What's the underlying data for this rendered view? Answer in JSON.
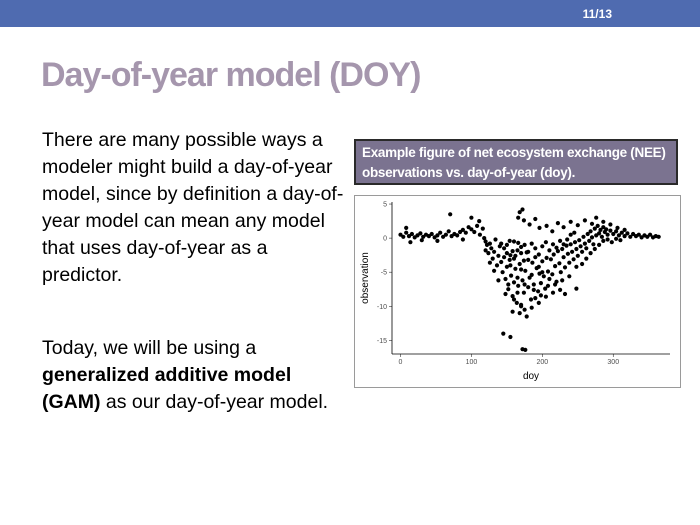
{
  "header": {
    "page_number": "11/13",
    "bar_color": "#4f6bb0"
  },
  "slide": {
    "title": "Day-of-year model (DOY)",
    "title_color": "#a596ad",
    "para1": "There are many possible ways a modeler might build a day-of-year model, since by definition a day-of-year model can mean any model that uses day-of-year as a predictor.",
    "para2_start": "Today, we will be using a ",
    "para2_bold": "generalized additive model (GAM)",
    "para2_end": " as our day-of-year model."
  },
  "figure": {
    "caption": "Example figure of net ecosystem exchange (NEE) observations vs. day-of-year (doy).",
    "caption_bg": "#7b7390"
  },
  "chart_data": {
    "type": "scatter",
    "xlabel": "doy",
    "ylabel": "observation",
    "xlim": [
      -12,
      380
    ],
    "ylim": [
      -17,
      5.3
    ],
    "xticks": [
      0,
      100,
      200,
      300
    ],
    "yticks": [
      5,
      0,
      -5,
      -10,
      -15
    ],
    "grid": false,
    "point_color": "#000000",
    "points": [
      [
        0,
        0.5
      ],
      [
        4,
        0.2
      ],
      [
        8,
        0.8
      ],
      [
        12,
        0.3
      ],
      [
        16,
        0.6
      ],
      [
        20,
        0.1
      ],
      [
        24,
        0.4
      ],
      [
        28,
        0.7
      ],
      [
        32,
        0.2
      ],
      [
        36,
        0.5
      ],
      [
        40,
        0.3
      ],
      [
        44,
        0.6
      ],
      [
        48,
        0.1
      ],
      [
        52,
        0.4
      ],
      [
        56,
        0.8
      ],
      [
        60,
        0.2
      ],
      [
        64,
        0.5
      ],
      [
        68,
        1.0
      ],
      [
        72,
        0.3
      ],
      [
        76,
        0.6
      ],
      [
        80,
        0.4
      ],
      [
        84,
        0.9
      ],
      [
        88,
        1.2
      ],
      [
        92,
        0.8
      ],
      [
        96,
        1.6
      ],
      [
        100,
        1.3
      ],
      [
        104,
        0.9
      ],
      [
        108,
        1.8
      ],
      [
        112,
        0.5
      ],
      [
        116,
        1.4
      ],
      [
        70,
        3.5
      ],
      [
        100,
        3.0
      ],
      [
        111,
        2.5
      ],
      [
        8,
        1.5
      ],
      [
        14,
        -0.6
      ],
      [
        30,
        -0.3
      ],
      [
        52,
        -0.4
      ],
      [
        88,
        -0.2
      ],
      [
        118,
        0.0
      ],
      [
        120,
        -0.5
      ],
      [
        122,
        -1.0
      ],
      [
        124,
        -2.2
      ],
      [
        126,
        -0.8
      ],
      [
        128,
        -1.5
      ],
      [
        130,
        -3.0
      ],
      [
        132,
        -2.0
      ],
      [
        134,
        -0.2
      ],
      [
        136,
        -4.0
      ],
      [
        138,
        -2.6
      ],
      [
        140,
        -1.2
      ],
      [
        142,
        -3.5
      ],
      [
        144,
        -5.0
      ],
      [
        146,
        -2.8
      ],
      [
        148,
        -6.0
      ],
      [
        150,
        -4.2
      ],
      [
        152,
        -7.5
      ],
      [
        154,
        -3.2
      ],
      [
        156,
        -5.5
      ],
      [
        158,
        -8.5
      ],
      [
        160,
        -6.5
      ],
      [
        162,
        -4.5
      ],
      [
        164,
        -9.5
      ],
      [
        166,
        -7.0
      ],
      [
        168,
        -3.8
      ],
      [
        170,
        -10.0
      ],
      [
        172,
        -6.2
      ],
      [
        174,
        -8.0
      ],
      [
        176,
        -4.8
      ],
      [
        178,
        -11.5
      ],
      [
        180,
        -7.2
      ],
      [
        182,
        -5.8
      ],
      [
        184,
        -9.0
      ],
      [
        186,
        -3.6
      ],
      [
        188,
        -6.8
      ],
      [
        190,
        -8.8
      ],
      [
        192,
        -4.4
      ],
      [
        194,
        -7.8
      ],
      [
        196,
        -5.2
      ],
      [
        198,
        -6.6
      ],
      [
        200,
        -3.4
      ],
      [
        202,
        -5.6
      ],
      [
        204,
        -7.4
      ],
      [
        206,
        -2.9
      ],
      [
        208,
        -4.9
      ],
      [
        210,
        -6.0
      ],
      [
        212,
        -3.1
      ],
      [
        214,
        -5.3
      ],
      [
        216,
        -2.4
      ],
      [
        218,
        -4.1
      ],
      [
        220,
        -6.4
      ],
      [
        222,
        -1.9
      ],
      [
        224,
        -3.7
      ],
      [
        226,
        -5.0
      ],
      [
        228,
        -1.6
      ],
      [
        230,
        -2.8
      ],
      [
        232,
        -4.3
      ],
      [
        234,
        -1.1
      ],
      [
        236,
        -2.3
      ],
      [
        238,
        -3.6
      ],
      [
        240,
        -0.9
      ],
      [
        242,
        -2.0
      ],
      [
        244,
        -3.1
      ],
      [
        246,
        -0.6
      ],
      [
        248,
        -1.6
      ],
      [
        250,
        -2.6
      ],
      [
        252,
        -0.3
      ],
      [
        254,
        -1.2
      ],
      [
        256,
        -2.0
      ],
      [
        258,
        0.2
      ],
      [
        260,
        -0.8
      ],
      [
        262,
        -1.5
      ],
      [
        264,
        0.6
      ],
      [
        266,
        -0.4
      ],
      [
        268,
        1.0
      ],
      [
        270,
        0.1
      ],
      [
        272,
        -0.9
      ],
      [
        274,
        1.4
      ],
      [
        276,
        0.4
      ],
      [
        278,
        1.8
      ],
      [
        280,
        0.7
      ],
      [
        282,
        1.2
      ],
      [
        284,
        0.2
      ],
      [
        286,
        1.6
      ],
      [
        288,
        0.9
      ],
      [
        290,
        1.3
      ],
      [
        292,
        0.5
      ],
      [
        296,
        1.1
      ],
      [
        300,
        0.6
      ],
      [
        304,
        1.0
      ],
      [
        308,
        0.4
      ],
      [
        312,
        0.8
      ],
      [
        316,
        0.3
      ],
      [
        320,
        0.7
      ],
      [
        324,
        0.2
      ],
      [
        328,
        0.6
      ],
      [
        332,
        0.3
      ],
      [
        336,
        0.5
      ],
      [
        340,
        0.1
      ],
      [
        344,
        0.4
      ],
      [
        348,
        0.2
      ],
      [
        352,
        0.5
      ],
      [
        356,
        0.1
      ],
      [
        360,
        0.3
      ],
      [
        364,
        0.2
      ],
      [
        150,
        -1.0
      ],
      [
        155,
        -2.5
      ],
      [
        160,
        -0.5
      ],
      [
        165,
        -1.8
      ],
      [
        170,
        -2.2
      ],
      [
        175,
        -1.0
      ],
      [
        180,
        -2.0
      ],
      [
        185,
        -0.8
      ],
      [
        190,
        -1.5
      ],
      [
        195,
        -2.4
      ],
      [
        200,
        -1.2
      ],
      [
        205,
        -0.6
      ],
      [
        210,
        -1.8
      ],
      [
        215,
        -0.9
      ],
      [
        220,
        -1.4
      ],
      [
        225,
        -0.4
      ],
      [
        230,
        -0.9
      ],
      [
        235,
        -0.2
      ],
      [
        240,
        0.5
      ],
      [
        245,
        0.8
      ],
      [
        155,
        -4.0
      ],
      [
        160,
        -3.0
      ],
      [
        165,
        -5.8
      ],
      [
        170,
        -4.6
      ],
      [
        175,
        -6.8
      ],
      [
        180,
        -3.2
      ],
      [
        185,
        -5.4
      ],
      [
        190,
        -2.8
      ],
      [
        195,
        -4.2
      ],
      [
        200,
        -5.0
      ],
      [
        142,
        -0.8
      ],
      [
        146,
        -1.5
      ],
      [
        150,
        -2.2
      ],
      [
        154,
        -0.4
      ],
      [
        158,
        -1.9
      ],
      [
        162,
        -2.6
      ],
      [
        166,
        -0.7
      ],
      [
        170,
        -1.3
      ],
      [
        174,
        -3.3
      ],
      [
        178,
        -2.1
      ],
      [
        160,
        -9.0
      ],
      [
        165,
        -8.0
      ],
      [
        170,
        -9.8
      ],
      [
        175,
        -10.5
      ],
      [
        168,
        -11.0
      ],
      [
        185,
        -10.2
      ],
      [
        195,
        -9.5
      ],
      [
        205,
        -8.6
      ],
      [
        215,
        -8.0
      ],
      [
        225,
        -7.6
      ],
      [
        152,
        -6.8
      ],
      [
        148,
        -8.2
      ],
      [
        158,
        -10.8
      ],
      [
        188,
        -7.6
      ],
      [
        198,
        -8.4
      ],
      [
        208,
        -7.0
      ],
      [
        218,
        -6.8
      ],
      [
        228,
        -6.2
      ],
      [
        238,
        -5.6
      ],
      [
        248,
        -4.2
      ],
      [
        168,
        3.8
      ],
      [
        172,
        4.2
      ],
      [
        166,
        3.0
      ],
      [
        174,
        2.6
      ],
      [
        182,
        2.0
      ],
      [
        190,
        2.8
      ],
      [
        196,
        1.5
      ],
      [
        206,
        1.8
      ],
      [
        214,
        1.0
      ],
      [
        222,
        2.2
      ],
      [
        230,
        1.6
      ],
      [
        240,
        2.4
      ],
      [
        250,
        1.9
      ],
      [
        260,
        2.6
      ],
      [
        270,
        2.1
      ],
      [
        276,
        3.0
      ],
      [
        286,
        2.4
      ],
      [
        296,
        2.0
      ],
      [
        306,
        1.5
      ],
      [
        316,
        1.2
      ],
      [
        145,
        -14.0
      ],
      [
        155,
        -14.5
      ],
      [
        172,
        -16.3
      ],
      [
        176,
        -16.4
      ],
      [
        232,
        -8.2
      ],
      [
        248,
        -7.4
      ],
      [
        126,
        -3.6
      ],
      [
        120,
        -1.8
      ],
      [
        132,
        -4.8
      ],
      [
        138,
        -6.2
      ],
      [
        256,
        -3.8
      ],
      [
        262,
        -3.0
      ],
      [
        268,
        -2.2
      ],
      [
        274,
        -1.6
      ],
      [
        280,
        -1.0
      ],
      [
        286,
        -0.4
      ],
      [
        292,
        -0.2
      ],
      [
        298,
        -0.6
      ],
      [
        304,
        -0.1
      ],
      [
        310,
        -0.3
      ]
    ]
  }
}
